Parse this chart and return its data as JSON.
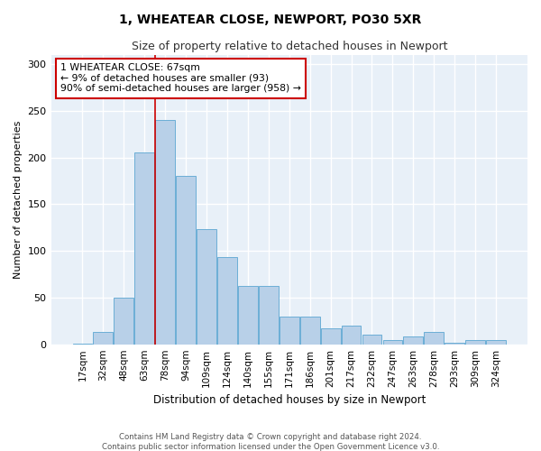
{
  "title": "1, WHEATEAR CLOSE, NEWPORT, PO30 5XR",
  "subtitle": "Size of property relative to detached houses in Newport",
  "xlabel": "Distribution of detached houses by size in Newport",
  "ylabel": "Number of detached properties",
  "bar_color": "#b8d0e8",
  "bar_edge_color": "#6baed6",
  "background_color": "#e8f0f8",
  "categories": [
    "17sqm",
    "32sqm",
    "48sqm",
    "63sqm",
    "78sqm",
    "94sqm",
    "109sqm",
    "124sqm",
    "140sqm",
    "155sqm",
    "171sqm",
    "186sqm",
    "201sqm",
    "217sqm",
    "232sqm",
    "247sqm",
    "263sqm",
    "278sqm",
    "293sqm",
    "309sqm",
    "324sqm"
  ],
  "values": [
    1,
    13,
    50,
    205,
    240,
    180,
    123,
    93,
    62,
    62,
    30,
    30,
    17,
    20,
    10,
    5,
    8,
    13,
    2,
    5,
    5
  ],
  "vline_x": 3.5,
  "vline_color": "#cc0000",
  "annotation_text": "1 WHEATEAR CLOSE: 67sqm\n← 9% of detached houses are smaller (93)\n90% of semi-detached houses are larger (958) →",
  "annotation_box_color": "#ffffff",
  "annotation_box_edge_color": "#cc0000",
  "ylim": [
    0,
    310
  ],
  "yticks": [
    0,
    50,
    100,
    150,
    200,
    250,
    300
  ],
  "footer1": "Contains HM Land Registry data © Crown copyright and database right 2024.",
  "footer2": "Contains public sector information licensed under the Open Government Licence v3.0."
}
